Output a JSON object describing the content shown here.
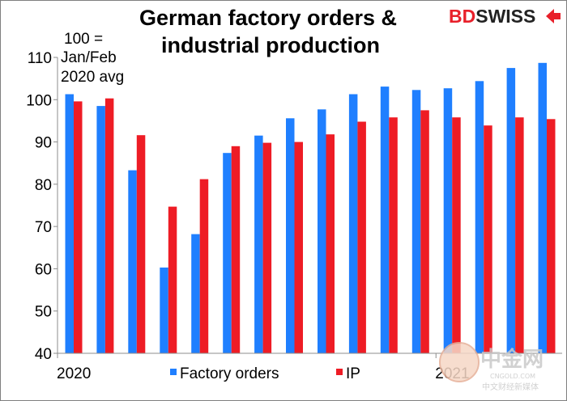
{
  "chart_data": {
    "type": "bar",
    "title_lines": [
      "German factory orders &",
      "industrial production"
    ],
    "note_lines": [
      "100 =",
      "Jan/Feb",
      "2020 avg"
    ],
    "ylim": [
      40,
      110
    ],
    "y_ticks": [
      40,
      50,
      60,
      70,
      80,
      90,
      100,
      110
    ],
    "x_tick_labels": [
      {
        "index": 0,
        "label": "2020"
      },
      {
        "index": 12,
        "label": "2021"
      }
    ],
    "grid": false,
    "legend_position": "bottom",
    "series": [
      {
        "name": "Factory orders",
        "color": "#1f7fff",
        "values": [
          101.3,
          98.5,
          83.3,
          60.3,
          68.2,
          87.4,
          91.5,
          95.6,
          97.7,
          101.3,
          103.1,
          102.3,
          102.7,
          104.4,
          107.5,
          108.7
        ]
      },
      {
        "name": "IP",
        "color": "#ee1c25",
        "values": [
          99.6,
          100.3,
          91.6,
          74.7,
          81.2,
          89.0,
          89.8,
          90.0,
          91.8,
          94.8,
          95.8,
          97.5,
          95.8,
          93.9,
          95.8,
          95.4
        ]
      }
    ]
  },
  "branding": {
    "logo_bd": "BD",
    "logo_swiss": "SWISS",
    "watermark_cn": "中金网",
    "watermark_sub": "中文财经新媒体",
    "watermark_en": "CNGOLD.COM"
  }
}
